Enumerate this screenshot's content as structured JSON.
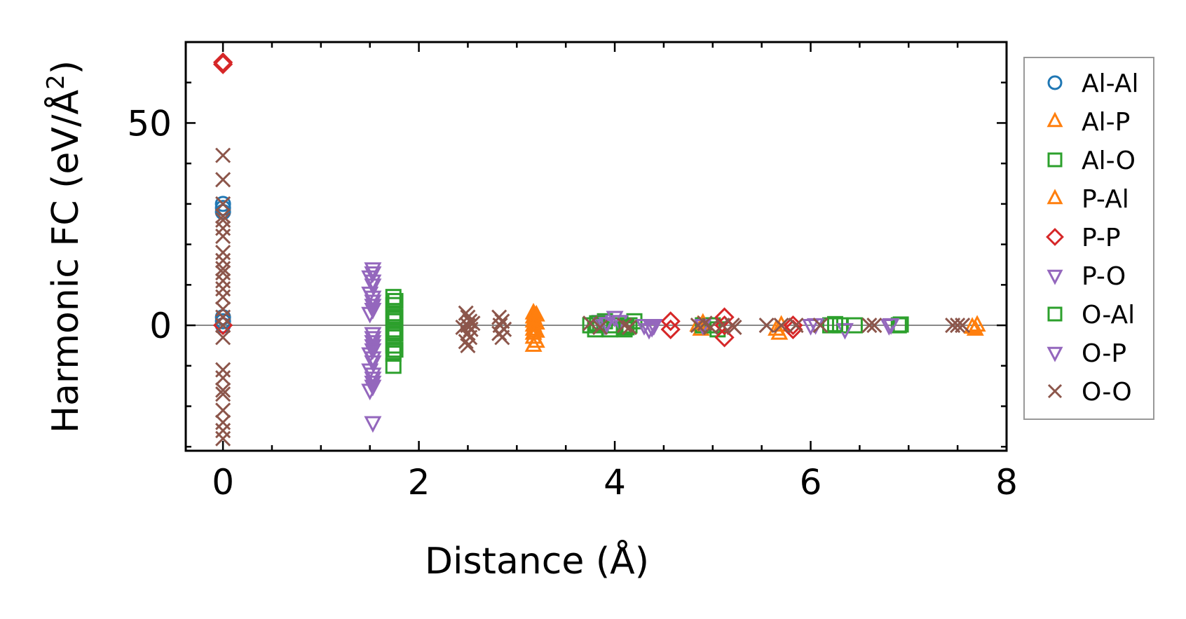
{
  "chart_data": {
    "type": "scatter",
    "xlabel": "Distance (Å)",
    "ylabel": {
      "main": "Harmonic FC (eV/Å",
      "sup": "2",
      "close": ")"
    },
    "xlim": [
      -0.38,
      8.0
    ],
    "ylim": [
      -31,
      70
    ],
    "x_ticks": [
      0,
      2,
      4,
      6,
      8
    ],
    "x_tick_labels": [
      "0",
      "2",
      "4",
      "6",
      "8"
    ],
    "y_ticks": [
      0,
      50
    ],
    "y_tick_labels": [
      "0",
      "50"
    ],
    "zero_line": true,
    "grid": false,
    "legend_position": "outside-right",
    "series": [
      {
        "name": "Al-Al",
        "marker": "circle",
        "color": "#1f77b4",
        "points": [
          [
            0,
            30
          ],
          [
            0,
            29
          ],
          [
            0,
            28
          ],
          [
            0,
            2
          ],
          [
            0,
            1
          ],
          [
            0,
            0
          ]
        ]
      },
      {
        "name": "Al-P",
        "marker": "triangle-up",
        "color": "#ff7f0e",
        "points": [
          [
            3.17,
            3
          ],
          [
            3.17,
            2
          ],
          [
            3.17,
            1
          ],
          [
            3.17,
            0
          ],
          [
            3.17,
            -1
          ],
          [
            3.17,
            -2
          ],
          [
            3.17,
            -3
          ],
          [
            3.17,
            -5
          ],
          [
            4.85,
            0
          ],
          [
            4.88,
            -1
          ],
          [
            5.65,
            -1
          ],
          [
            5.68,
            -2
          ],
          [
            7.65,
            -0.5
          ],
          [
            7.68,
            -1
          ]
        ]
      },
      {
        "name": "Al-O",
        "marker": "square",
        "color": "#2ca02c",
        "points": [
          [
            1.74,
            7
          ],
          [
            1.74,
            5
          ],
          [
            1.74,
            3
          ],
          [
            1.74,
            1
          ],
          [
            1.74,
            -1
          ],
          [
            1.74,
            -3
          ],
          [
            1.74,
            -5
          ],
          [
            1.74,
            -7
          ],
          [
            1.74,
            -10
          ],
          [
            3.75,
            0
          ],
          [
            3.8,
            -1
          ],
          [
            3.85,
            0
          ],
          [
            3.9,
            1
          ],
          [
            3.95,
            -1
          ],
          [
            4.0,
            0
          ],
          [
            4.1,
            -1
          ],
          [
            4.15,
            0
          ],
          [
            4.2,
            1
          ],
          [
            4.9,
            0
          ],
          [
            5.0,
            0
          ],
          [
            5.05,
            -1
          ],
          [
            6.2,
            0
          ],
          [
            6.3,
            0
          ],
          [
            6.45,
            0
          ],
          [
            6.9,
            0
          ]
        ]
      },
      {
        "name": "P-Al",
        "marker": "triangle-up",
        "color": "#ff7f0e",
        "points": [
          [
            3.2,
            2.5
          ],
          [
            3.2,
            0.5
          ],
          [
            3.2,
            -1.5
          ],
          [
            3.2,
            -4
          ],
          [
            4.9,
            0.5
          ],
          [
            5.7,
            0
          ],
          [
            7.7,
            0
          ]
        ]
      },
      {
        "name": "P-P",
        "marker": "diamond",
        "color": "#d62728",
        "points": [
          [
            0,
            65
          ],
          [
            0,
            64.5
          ],
          [
            0,
            0
          ],
          [
            4.57,
            1
          ],
          [
            4.57,
            -1
          ],
          [
            5.12,
            2
          ],
          [
            5.12,
            0
          ],
          [
            5.12,
            -3
          ],
          [
            5.82,
            0
          ],
          [
            5.82,
            -1
          ]
        ]
      },
      {
        "name": "P-O",
        "marker": "triangle-down",
        "color": "#9467bd",
        "points": [
          [
            1.53,
            14
          ],
          [
            1.53,
            13
          ],
          [
            1.53,
            11
          ],
          [
            1.53,
            10
          ],
          [
            1.53,
            7
          ],
          [
            1.53,
            6
          ],
          [
            1.53,
            5
          ],
          [
            1.53,
            4
          ],
          [
            1.53,
            -2
          ],
          [
            1.53,
            -3
          ],
          [
            1.53,
            -4
          ],
          [
            1.53,
            -5
          ],
          [
            1.53,
            -6
          ],
          [
            1.53,
            -8
          ],
          [
            1.53,
            -9
          ],
          [
            1.53,
            -12
          ],
          [
            1.53,
            -13
          ],
          [
            1.53,
            -14
          ],
          [
            1.53,
            -15
          ],
          [
            1.53,
            -24
          ],
          [
            3.85,
            1
          ],
          [
            3.9,
            0
          ],
          [
            4.0,
            2
          ],
          [
            4.05,
            1
          ],
          [
            4.3,
            0
          ],
          [
            4.35,
            -1
          ],
          [
            4.4,
            0
          ],
          [
            4.9,
            0
          ],
          [
            6.0,
            0
          ],
          [
            6.35,
            -1
          ],
          [
            6.8,
            0
          ]
        ]
      },
      {
        "name": "O-Al",
        "marker": "square",
        "color": "#2ca02c",
        "points": [
          [
            1.76,
            6
          ],
          [
            1.76,
            2
          ],
          [
            1.76,
            -2
          ],
          [
            1.76,
            -6
          ],
          [
            3.82,
            0.5
          ],
          [
            4.12,
            -0.5
          ],
          [
            6.25,
            0.3
          ],
          [
            6.92,
            0.2
          ]
        ]
      },
      {
        "name": "O-P",
        "marker": "triangle-down",
        "color": "#9467bd",
        "points": [
          [
            1.5,
            12
          ],
          [
            1.5,
            8
          ],
          [
            1.5,
            3
          ],
          [
            1.5,
            -7
          ],
          [
            1.5,
            -11
          ],
          [
            1.5,
            -16
          ],
          [
            3.92,
            0.5
          ],
          [
            4.38,
            -0.5
          ],
          [
            6.05,
            0.2
          ],
          [
            6.82,
            0.2
          ]
        ]
      },
      {
        "name": "O-O",
        "marker": "cross",
        "color": "#8c564b",
        "points": [
          [
            0,
            42
          ],
          [
            0,
            36
          ],
          [
            0,
            30
          ],
          [
            0,
            27
          ],
          [
            0,
            26
          ],
          [
            0,
            24
          ],
          [
            0,
            22
          ],
          [
            0,
            18
          ],
          [
            0,
            16
          ],
          [
            0,
            14
          ],
          [
            0,
            13
          ],
          [
            0,
            11
          ],
          [
            0,
            9
          ],
          [
            0,
            7
          ],
          [
            0,
            4
          ],
          [
            0,
            2
          ],
          [
            0,
            0
          ],
          [
            0,
            -3
          ],
          [
            0,
            -11
          ],
          [
            0,
            -13
          ],
          [
            0,
            -16
          ],
          [
            0,
            -17
          ],
          [
            0,
            -21
          ],
          [
            0,
            -24
          ],
          [
            0,
            -26
          ],
          [
            0,
            -28
          ],
          [
            2.48,
            3
          ],
          [
            2.5,
            2
          ],
          [
            2.52,
            1
          ],
          [
            2.5,
            0
          ],
          [
            2.53,
            -1
          ],
          [
            2.5,
            -2
          ],
          [
            2.52,
            -3
          ],
          [
            2.5,
            -5
          ],
          [
            2.48,
            -4
          ],
          [
            2.55,
            0.5
          ],
          [
            2.45,
            -0.5
          ],
          [
            2.82,
            2
          ],
          [
            2.85,
            1
          ],
          [
            2.83,
            0
          ],
          [
            2.87,
            -1
          ],
          [
            2.82,
            -2
          ],
          [
            2.85,
            -3
          ],
          [
            3.75,
            0.5
          ],
          [
            3.85,
            -0.5
          ],
          [
            4.1,
            0
          ],
          [
            4.15,
            -0.5
          ],
          [
            4.85,
            0
          ],
          [
            4.92,
            0.5
          ],
          [
            4.98,
            -0.5
          ],
          [
            5.1,
            0
          ],
          [
            5.2,
            0
          ],
          [
            5.22,
            -0.5
          ],
          [
            5.55,
            0
          ],
          [
            5.7,
            0
          ],
          [
            5.85,
            0
          ],
          [
            6.1,
            0
          ],
          [
            6.6,
            0
          ],
          [
            6.65,
            0
          ],
          [
            7.45,
            0
          ],
          [
            7.5,
            0
          ],
          [
            7.55,
            0
          ]
        ]
      }
    ]
  }
}
